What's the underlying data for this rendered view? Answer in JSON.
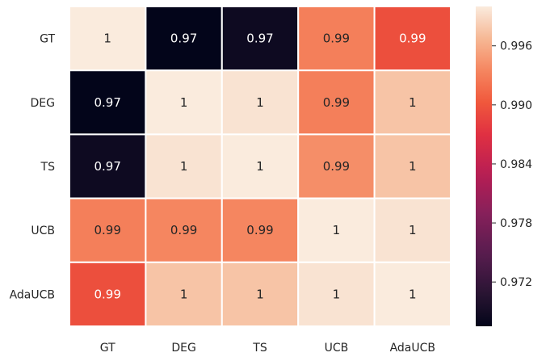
{
  "chart_data": {
    "type": "heatmap",
    "title": "",
    "xlabel": "",
    "ylabel": "",
    "x_categories": [
      "GT",
      "DEG",
      "TS",
      "UCB",
      "AdaUCB"
    ],
    "y_categories": [
      "GT",
      "DEG",
      "TS",
      "UCB",
      "AdaUCB"
    ],
    "values": [
      [
        1.0,
        0.9675,
        0.9685,
        0.993,
        0.9895
      ],
      [
        0.9675,
        1.0,
        0.9995,
        0.993,
        0.9975
      ],
      [
        0.9685,
        0.9995,
        1.0,
        0.994,
        0.9975
      ],
      [
        0.993,
        0.9935,
        0.9935,
        1.0,
        0.9995
      ],
      [
        0.9895,
        0.9975,
        0.9975,
        0.9995,
        1.0
      ]
    ],
    "annotations": [
      [
        "1",
        "0.97",
        "0.97",
        "0.99",
        "0.99"
      ],
      [
        "0.97",
        "1",
        "1",
        "0.99",
        "1"
      ],
      [
        "0.97",
        "1",
        "1",
        "0.99",
        "1"
      ],
      [
        "0.99",
        "0.99",
        "0.99",
        "1",
        "1"
      ],
      [
        "0.99",
        "1",
        "1",
        "1",
        "1"
      ]
    ],
    "colorbar": {
      "min": 0.9675,
      "max": 1.0,
      "ticks": [
        0.972,
        0.978,
        0.984,
        0.99,
        0.996
      ],
      "tick_labels": [
        "0.972",
        "0.978",
        "0.984",
        "0.990",
        "0.996"
      ],
      "colormap": "rocket"
    },
    "grid": false,
    "cell_separator_color": "#ffffff"
  }
}
